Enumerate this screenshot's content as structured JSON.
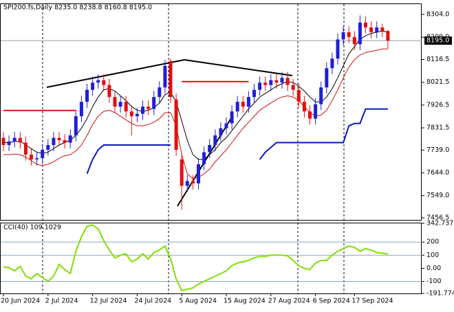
{
  "chart_data": [
    {
      "type": "candlestick",
      "title": "SPI200.fs,Daily  8235.0 8238.8 8160.8 8195.0",
      "categories": [
        "20 Jun 2024",
        null,
        null,
        null,
        null,
        null,
        null,
        null,
        "2 Jul 2024",
        null,
        null,
        null,
        null,
        null,
        null,
        null,
        "12 Jul 2024",
        null,
        null,
        null,
        null,
        null,
        null,
        null,
        "24 Jul 2024",
        null,
        null,
        null,
        null,
        null,
        null,
        null,
        "5 Aug 2024",
        null,
        null,
        null,
        null,
        null,
        null,
        null,
        "15 Aug 2024",
        null,
        null,
        null,
        null,
        null,
        null,
        null,
        "27 Aug 2024",
        null,
        null,
        null,
        null,
        null,
        null,
        null,
        "6 Sep 2024",
        null,
        null,
        null,
        null,
        null,
        null,
        "17 Sep 2024",
        null,
        null,
        null,
        null,
        null,
        null
      ],
      "open": [
        7790,
        7760,
        7775,
        7790,
        7770,
        7720,
        7700,
        7705,
        7740,
        7760,
        7790,
        7780,
        7770,
        7800,
        7880,
        7940,
        7990,
        8020,
        8030,
        8010,
        7960,
        7920,
        7940,
        7900,
        7880,
        7890,
        7920,
        7910,
        7960,
        8000,
        8110,
        7950,
        7700,
        7590,
        7610,
        7600,
        7680,
        7730,
        7760,
        7800,
        7830,
        7850,
        7900,
        7940,
        7920,
        7960,
        7990,
        8020,
        8010,
        8030,
        8020,
        8040,
        8010,
        7990,
        7940,
        7900,
        7870,
        7930,
        8000,
        8080,
        8120,
        8200,
        8230,
        8210,
        8180,
        8270,
        8250,
        8230,
        8250,
        8235
      ],
      "high": [
        7815,
        7800,
        7815,
        7815,
        7795,
        7745,
        7730,
        7765,
        7785,
        7815,
        7815,
        7805,
        7825,
        7905,
        7965,
        8015,
        8045,
        8055,
        8055,
        8035,
        7985,
        7965,
        7965,
        7925,
        7915,
        7945,
        7945,
        7985,
        8025,
        8115,
        8120,
        7975,
        7725,
        7635,
        7635,
        7705,
        7755,
        7785,
        7825,
        7855,
        7875,
        7925,
        7965,
        7965,
        7985,
        8015,
        8045,
        8045,
        8055,
        8055,
        8065,
        8065,
        8035,
        8015,
        7965,
        7925,
        7955,
        8025,
        8105,
        8145,
        8225,
        8255,
        8255,
        8235,
        8300,
        8295,
        8275,
        8275,
        8265,
        8238.8
      ],
      "low": [
        7735,
        7735,
        7750,
        7745,
        7695,
        7675,
        7675,
        7680,
        7715,
        7735,
        7755,
        7745,
        7745,
        7775,
        7855,
        7915,
        7965,
        7995,
        7985,
        7935,
        7895,
        7895,
        7875,
        7800,
        7855,
        7865,
        7885,
        7885,
        7935,
        7975,
        7935,
        7715,
        7490,
        7565,
        7575,
        7575,
        7655,
        7705,
        7735,
        7775,
        7805,
        7825,
        7875,
        7895,
        7895,
        7935,
        7965,
        7985,
        7985,
        7995,
        7995,
        7985,
        7965,
        7915,
        7875,
        7845,
        7845,
        7905,
        7975,
        8055,
        8095,
        8175,
        8185,
        8155,
        8155,
        8225,
        8205,
        8205,
        8210,
        8160.8
      ],
      "close": [
        7760,
        7775,
        7790,
        7770,
        7720,
        7700,
        7705,
        7740,
        7760,
        7790,
        7780,
        7770,
        7800,
        7880,
        7940,
        7990,
        8020,
        8030,
        8010,
        7960,
        7920,
        7940,
        7900,
        7880,
        7890,
        7920,
        7910,
        7960,
        8000,
        8090,
        7960,
        7740,
        7590,
        7610,
        7600,
        7680,
        7730,
        7760,
        7800,
        7830,
        7850,
        7900,
        7940,
        7920,
        7960,
        7990,
        8020,
        8010,
        8030,
        8020,
        8040,
        8010,
        7990,
        7940,
        7900,
        7870,
        7930,
        8000,
        8080,
        8120,
        8200,
        8230,
        8210,
        8180,
        8270,
        8250,
        8230,
        8250,
        8235,
        8195
      ],
      "up_color": "#1f1fd6",
      "down_color": "#e01010",
      "series": [
        {
          "color": "#000000",
          "values": [
            7770,
            7770,
            7775,
            7775,
            7760,
            7745,
            7730,
            7725,
            7730,
            7745,
            7760,
            7770,
            7780,
            7800,
            7830,
            7870,
            7920,
            7960,
            7990,
            7995,
            7985,
            7965,
            7945,
            7920,
            7905,
            7900,
            7905,
            7915,
            7935,
            7970,
            7980,
            7940,
            7860,
            7780,
            7720,
            7700,
            7700,
            7720,
            7740,
            7770,
            7790,
            7820,
            7850,
            7880,
            7910,
            7935,
            7960,
            7975,
            7990,
            8005,
            8015,
            8025,
            8020,
            8005,
            7985,
            7960,
            7940,
            7940,
            7960,
            7995,
            8040,
            8090,
            8140,
            8170,
            8200,
            8215,
            8225,
            8230,
            8235,
            8230
          ]
        },
        {
          "color": "#d01010",
          "values": [
            7720,
            7720,
            7722,
            7720,
            7710,
            7695,
            7680,
            7675,
            7680,
            7690,
            7705,
            7715,
            7720,
            7735,
            7760,
            7800,
            7845,
            7880,
            7900,
            7905,
            7895,
            7880,
            7865,
            7850,
            7840,
            7840,
            7845,
            7855,
            7870,
            7895,
            7895,
            7840,
            7720,
            7640,
            7620,
            7625,
            7640,
            7660,
            7690,
            7715,
            7740,
            7770,
            7800,
            7830,
            7855,
            7880,
            7905,
            7920,
            7935,
            7950,
            7960,
            7965,
            7960,
            7945,
            7920,
            7895,
            7880,
            7885,
            7905,
            7945,
            7990,
            8040,
            8085,
            8115,
            8135,
            8145,
            8150,
            8155,
            8160,
            8160
          ]
        },
        {
          "color": "#0a14c8",
          "values": [
            null,
            null,
            null,
            null,
            null,
            null,
            null,
            null,
            null,
            null,
            null,
            null,
            null,
            null,
            null,
            7640,
            7700,
            7740,
            7760,
            7760,
            7760,
            7760,
            7760,
            7760,
            7760,
            7760,
            7760,
            7760,
            7760,
            7760,
            7760,
            null,
            null,
            null,
            null,
            null,
            null,
            null,
            null,
            null,
            null,
            null,
            null,
            null,
            null,
            null,
            7700,
            7730,
            7750,
            7770,
            7770,
            7770,
            7770,
            7770,
            7770,
            7770,
            7770,
            7770,
            7770,
            7770,
            7770,
            7770,
            7840,
            7850,
            7850,
            7910,
            7910,
            7910,
            7910,
            7910
          ]
        },
        {
          "color": "#e01010",
          "values": [
            7904,
            7904,
            7904,
            7904,
            7904,
            7904,
            7904,
            7904,
            7904,
            7904,
            7904,
            7904,
            7904,
            7904,
            null,
            null,
            null,
            null,
            null,
            null,
            null,
            null,
            null,
            null,
            null,
            null,
            null,
            null,
            null,
            null,
            null,
            null,
            8024,
            8024,
            8024,
            8024,
            8024,
            8024,
            8024,
            8024,
            8024,
            8024,
            8024,
            8024,
            8024,
            null,
            null,
            null,
            null,
            null,
            null,
            null,
            null,
            null,
            null,
            null,
            null,
            null,
            null,
            null,
            null,
            null,
            null,
            null,
            null,
            null,
            null,
            null,
            null,
            null
          ]
        }
      ],
      "price_marker": {
        "value": 8195,
        "label": "8195.0"
      },
      "ylim": [
        7448,
        8347
      ],
      "yticks": [
        {
          "value": 8304,
          "label": "8304.0"
        },
        {
          "value": 8209,
          "label": "8209.0"
        },
        {
          "value": 8116.5,
          "label": "8116.5"
        },
        {
          "value": 8021.5,
          "label": "8021.5"
        },
        {
          "value": 7926.5,
          "label": "7926.5"
        },
        {
          "value": 7831.5,
          "label": "7831.5"
        },
        {
          "value": 7739,
          "label": "7739.0"
        },
        {
          "value": 7644,
          "label": "7644.0"
        },
        {
          "value": 7549,
          "label": "7549.0"
        },
        {
          "value": 7456.5,
          "label": "7456.5"
        }
      ]
    },
    {
      "type": "line",
      "title": "CCI(40) 109.1029",
      "color": "#7fe000",
      "values": [
        10,
        5,
        -20,
        15,
        -60,
        -80,
        -40,
        -70,
        -100,
        -60,
        30,
        -10,
        -40,
        130,
        240,
        320,
        330,
        300,
        210,
        140,
        80,
        100,
        110,
        50,
        70,
        110,
        70,
        120,
        140,
        170,
        70,
        -80,
        -170,
        -160,
        -150,
        -120,
        -100,
        -80,
        -60,
        -40,
        -20,
        20,
        40,
        50,
        60,
        80,
        90,
        90,
        100,
        100,
        100,
        95,
        60,
        20,
        0,
        -10,
        40,
        60,
        60,
        100,
        130,
        150,
        170,
        160,
        130,
        150,
        140,
        120,
        115,
        109.1029
      ],
      "ylim": [
        -191.7744,
        342.7377
      ],
      "yticks": [
        342.7377,
        200,
        100,
        {
          "value": 0,
          "label": "0.00"
        },
        -100,
        -191.7744
      ],
      "levels": [
        200,
        100,
        -100
      ]
    }
  ]
}
